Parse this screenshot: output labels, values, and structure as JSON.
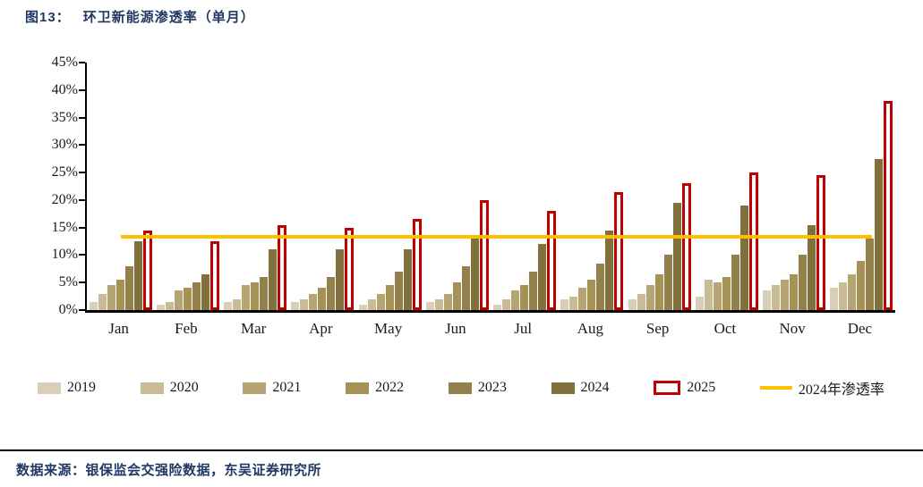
{
  "header": {
    "figure_no": "图13：",
    "title": "环卫新能源渗透率（单月）"
  },
  "chart_data": {
    "type": "bar",
    "title": "环卫新能源渗透率（单月）",
    "categories": [
      "Jan",
      "Feb",
      "Mar",
      "Apr",
      "May",
      "Jun",
      "Jul",
      "Aug",
      "Sep",
      "Oct",
      "Nov",
      "Dec"
    ],
    "series": [
      {
        "name": "2019",
        "color": "#D9CFB8",
        "values": [
          1.5,
          1.0,
          1.5,
          1.5,
          1.0,
          1.5,
          1.0,
          2.0,
          2.0,
          2.5,
          3.5,
          4.0
        ]
      },
      {
        "name": "2020",
        "color": "#C9BB95",
        "values": [
          3.0,
          1.5,
          2.0,
          2.0,
          2.0,
          2.0,
          2.0,
          2.5,
          3.0,
          5.5,
          4.5,
          5.0
        ]
      },
      {
        "name": "2021",
        "color": "#B6A573",
        "values": [
          4.5,
          3.5,
          4.5,
          3.0,
          3.0,
          3.0,
          3.5,
          4.0,
          4.5,
          5.0,
          5.5,
          6.5
        ]
      },
      {
        "name": "2022",
        "color": "#A79256",
        "values": [
          5.5,
          4.0,
          5.0,
          4.0,
          4.5,
          5.0,
          4.5,
          5.5,
          6.5,
          6.0,
          6.5,
          9.0
        ]
      },
      {
        "name": "2023",
        "color": "#93804A",
        "values": [
          8.0,
          5.0,
          6.0,
          6.0,
          7.0,
          8.0,
          7.0,
          8.5,
          10.0,
          10.0,
          10.0,
          13.0
        ]
      },
      {
        "name": "2024",
        "color": "#80703C",
        "values": [
          12.5,
          6.5,
          11.0,
          11.0,
          11.0,
          13.5,
          12.0,
          14.5,
          19.5,
          19.0,
          15.5,
          27.5
        ]
      },
      {
        "name": "2025",
        "color": "#C00000",
        "fill": "#FFFFFF",
        "values": [
          14.5,
          12.5,
          15.5,
          15.0,
          16.5,
          20.0,
          18.0,
          21.5,
          23.0,
          25.0,
          24.5,
          38.0
        ]
      }
    ],
    "reference_line": {
      "label": "2024年渗透率",
      "value": 13.4,
      "color": "#FFC000"
    },
    "ylim": [
      0,
      45
    ],
    "ytick_step": 5,
    "ytick_labels": [
      "0%",
      "5%",
      "10%",
      "15%",
      "20%",
      "25%",
      "30%",
      "35%",
      "40%",
      "45%"
    ],
    "legend_position": "bottom",
    "grid": false,
    "colors": {
      "accent_red": "#C00000",
      "accent_yellow": "#FFC000",
      "title_navy": "#1F3864"
    }
  },
  "footer": {
    "source": "数据来源：银保监会交强险数据，东吴证券研究所"
  }
}
